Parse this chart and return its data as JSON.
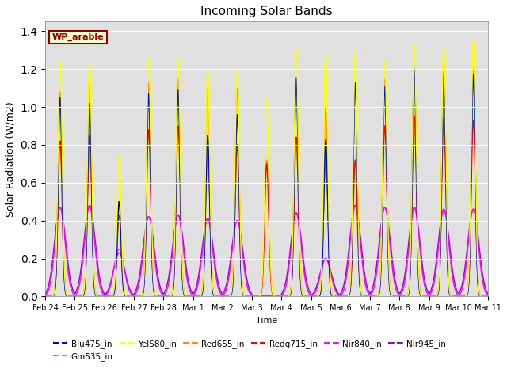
{
  "title": "Incoming Solar Bands",
  "ylabel": "Solar Radiation (W/m2)",
  "xlabel": "Time",
  "legend_label": "WP_arable",
  "ylim": [
    0,
    1.45
  ],
  "num_days": 15,
  "colors": {
    "Blu475_in": "#0000cc",
    "Gm535_in": "#00ff00",
    "Yel580_in": "#ffff00",
    "Red655_in": "#ff8800",
    "Redg715_in": "#ff0000",
    "Nir840_in": "#ff00ff",
    "Nir945_in": "#9900cc"
  },
  "tick_labels": [
    "Feb 24",
    "Feb 25",
    "Feb 26",
    "Feb 27",
    "Feb 28",
    "Mar 1",
    "Mar 2",
    "Mar 3",
    "Mar 4",
    "Mar 5",
    "Mar 6",
    "Mar 7",
    "Mar 8",
    "Mar 9",
    "Mar 10",
    "Mar 11"
  ],
  "bg_color": "#e0e0e0",
  "day_peaks": {
    "0": [
      1.24,
      1.08,
      0.82,
      0.47,
      0.47,
      1.05,
      1.05
    ],
    "1": [
      1.25,
      1.12,
      0.85,
      0.48,
      0.48,
      1.02,
      1.02
    ],
    "2": [
      0.75,
      0.5,
      0.43,
      0.25,
      0.23,
      0.5,
      0.5
    ],
    "3": [
      1.26,
      1.13,
      0.88,
      0.42,
      0.42,
      1.07,
      1.07
    ],
    "4": [
      1.26,
      1.15,
      0.9,
      0.43,
      0.43,
      1.09,
      1.09
    ],
    "5": [
      1.21,
      1.1,
      0.84,
      0.41,
      0.41,
      0.85,
      0.85
    ],
    "6": [
      1.2,
      1.1,
      0.8,
      0.4,
      0.4,
      0.96,
      0.96
    ],
    "7": [
      1.05,
      0.72,
      0.7,
      0.0,
      0.0,
      0.0,
      0.0
    ],
    "8": [
      1.3,
      1.16,
      0.84,
      0.44,
      0.44,
      1.15,
      1.15
    ],
    "9": [
      1.3,
      1.0,
      0.83,
      0.2,
      0.2,
      0.82,
      0.82
    ],
    "10": [
      1.3,
      1.1,
      0.72,
      0.48,
      0.48,
      1.13,
      1.13
    ],
    "11": [
      1.25,
      1.15,
      0.9,
      0.47,
      0.47,
      1.11,
      1.11
    ],
    "12": [
      1.33,
      1.22,
      0.95,
      0.47,
      0.47,
      1.2,
      1.2
    ],
    "13": [
      1.34,
      1.22,
      0.94,
      0.46,
      0.46,
      1.18,
      1.18
    ],
    "14": [
      1.35,
      1.2,
      0.93,
      0.46,
      0.46,
      1.17,
      1.17
    ]
  }
}
